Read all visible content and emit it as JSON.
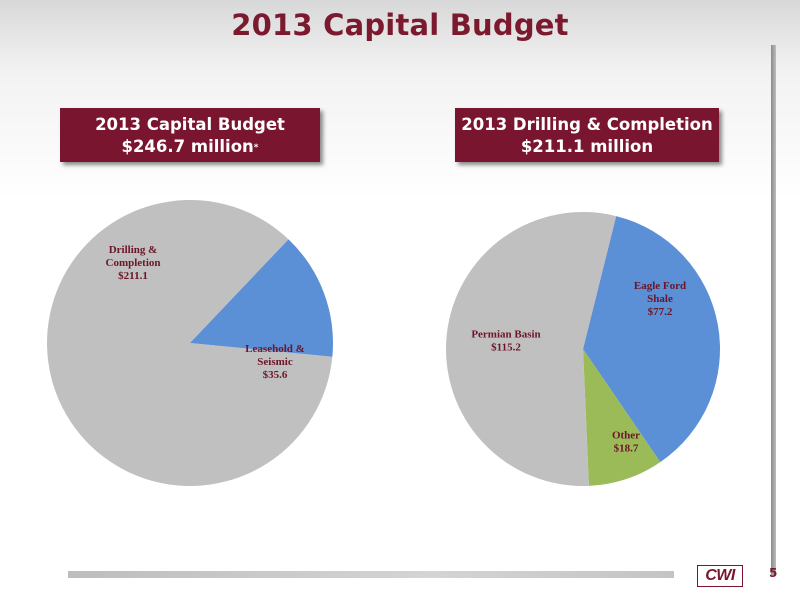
{
  "slide": {
    "title": "2013 Capital Budget",
    "page_number": "5",
    "logo_text": "CWI"
  },
  "boxes": {
    "left": {
      "line1": "2013 Capital Budget",
      "line2": "$246.7 million",
      "marker": "*"
    },
    "right": {
      "line1": "2013 Drilling & Completion",
      "line2": "$211.1 million"
    }
  },
  "chart_data": [
    {
      "type": "pie",
      "title": "2013 Capital Budget $246.7 million",
      "slices": [
        {
          "name": "Drilling & Completion",
          "value": 211.1,
          "label_lines": [
            "Drilling &",
            "Completion",
            "$211.1"
          ],
          "color": "#c0c0c0"
        },
        {
          "name": "Leasehold & Seismic",
          "value": 35.6,
          "label_lines": [
            "Leasehold &",
            "Seismic",
            "$35.6"
          ],
          "color": "#5b8fd6"
        }
      ]
    },
    {
      "type": "pie",
      "title": "2013 Drilling & Completion $211.1 million",
      "slices": [
        {
          "name": "Eagle Ford Shale",
          "value": 77.2,
          "label_lines": [
            "Eagle Ford",
            "Shale",
            "$77.2"
          ],
          "color": "#5b8fd6"
        },
        {
          "name": "Other",
          "value": 18.7,
          "label_lines": [
            "Other",
            "$18.7"
          ],
          "color": "#9bbb59"
        },
        {
          "name": "Permian Basin",
          "value": 115.2,
          "label_lines": [
            "Permian Basin",
            "$115.2"
          ],
          "color": "#c0c0c0"
        }
      ]
    }
  ]
}
